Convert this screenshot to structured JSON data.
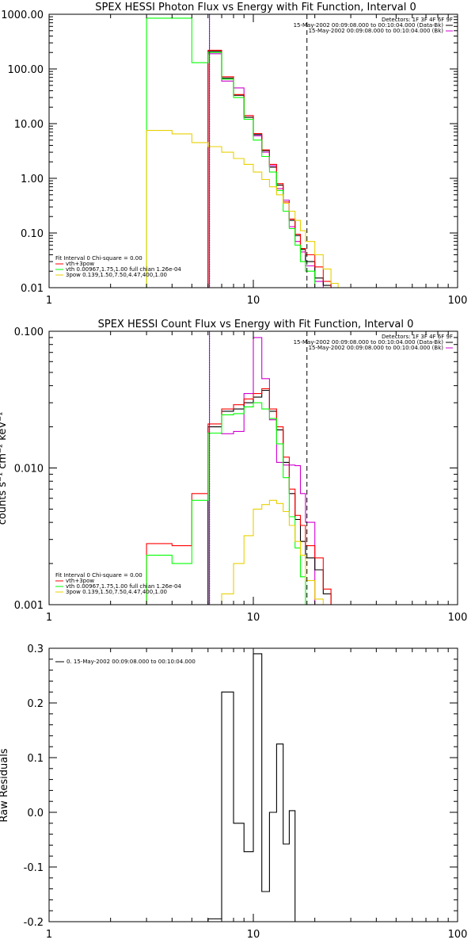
{
  "colors": {
    "background": "#ffffff",
    "axes": "#000000",
    "red": "#ff0000",
    "green": "#00ff00",
    "yellow": "#e8d000",
    "magenta": "#d000d0",
    "black": "#000000",
    "violet": "#8000ff"
  },
  "chart_data": [
    {
      "type": "line",
      "title": "SPEX HESSI Photon Flux vs Energy with Fit Function, Interval 0",
      "xscale": "log",
      "yscale": "log",
      "xlim": [
        1,
        100
      ],
      "ylim": [
        0.01,
        1000
      ],
      "xticks": [
        1,
        10,
        100
      ],
      "xtick_labels": [
        "1",
        "10",
        "100"
      ],
      "yticks": [
        0.01,
        0.1,
        1,
        10,
        100,
        1000
      ],
      "ytick_labels": [
        "0.01",
        "0.10",
        "1.00",
        "10.00",
        "100.00",
        "1000.00"
      ],
      "vlines": [
        {
          "x": 6.1,
          "style": "dotted",
          "color": "#000000"
        },
        {
          "x": 6.1,
          "style": "solid",
          "color": "#8000ff"
        },
        {
          "x": 18.3,
          "style": "dashed",
          "color": "#000000"
        }
      ],
      "legend_topright": [
        "Detectors: 1F 3F 4F 6F 9F",
        "15-May-2002 00:09:08.000 to 00:10:04.000 (Data-Bk)",
        "15-May-2002 00:09:08.000 to 00:10:04.000 (Bk)"
      ],
      "legend_topright_colors": [
        "",
        "#000000",
        "#d000d0"
      ],
      "legend_bottomleft_title": "Fit Interval 0   Chi-square = 0.00",
      "legend_bottomleft": [
        "vth+3pow",
        "vth 0.00967,1.75,1.00   full chian 1.26e-04",
        "3pow 0.139,1.50,7.50,4.47,400,1.00"
      ],
      "legend_bottomleft_colors": [
        "#ff0000",
        "#00ff00",
        "#e8d000"
      ],
      "edges": [
        3,
        4,
        5,
        6,
        7,
        8,
        9,
        10,
        11,
        12,
        13,
        14,
        15,
        16,
        17,
        18,
        20,
        22,
        24,
        26
      ],
      "series": [
        {
          "color": "#d000d0",
          "values": [
            null,
            null,
            null,
            190,
            60,
            45,
            14,
            6,
            3.0,
            1.7,
            0.65,
            0.4,
            0.13,
            0.07,
            0.045,
            0.025,
            0.013,
            null,
            null
          ]
        },
        {
          "color": "#000000",
          "values": [
            null,
            null,
            null,
            210,
            68,
            33,
            13,
            6.3,
            3.2,
            1.6,
            0.75,
            0.35,
            0.17,
            0.09,
            0.05,
            0.03,
            0.015,
            0.011,
            null
          ]
        },
        {
          "color": "#ff0000",
          "values": [
            null,
            null,
            null,
            220,
            72,
            34,
            14,
            6.6,
            3.3,
            1.8,
            0.8,
            0.37,
            0.18,
            0.095,
            0.052,
            0.04,
            0.024,
            0.013,
            null
          ]
        },
        {
          "color": "#00ff00",
          "values": [
            850,
            850,
            130,
            200,
            65,
            30,
            12,
            5,
            2.5,
            1.3,
            0.6,
            0.25,
            0.12,
            0.06,
            0.03,
            0.02,
            null,
            null,
            null
          ]
        },
        {
          "color": "#e8d000",
          "values": [
            7.5,
            6.5,
            4.5,
            3.8,
            3.0,
            2.3,
            1.8,
            1.3,
            0.95,
            0.7,
            0.5,
            0.35,
            0.25,
            0.17,
            0.11,
            0.07,
            0.04,
            0.022,
            0.012
          ]
        }
      ]
    },
    {
      "type": "line",
      "title": "SPEX HESSI Count Flux vs Energy with Fit Function, Interval 0",
      "ylabel": "counts s⁻¹ cm⁻² keV⁻¹",
      "xscale": "log",
      "yscale": "log",
      "xlim": [
        1,
        100
      ],
      "ylim": [
        0.001,
        0.1
      ],
      "xticks": [
        1,
        10,
        100
      ],
      "xtick_labels": [
        "1",
        "10",
        "100"
      ],
      "yticks": [
        0.001,
        0.01,
        0.1
      ],
      "ytick_labels": [
        "0.001",
        "0.010",
        "0.100"
      ],
      "vlines": [
        {
          "x": 6.1,
          "style": "dotted",
          "color": "#000000"
        },
        {
          "x": 6.1,
          "style": "solid",
          "color": "#8000ff"
        },
        {
          "x": 18.3,
          "style": "dashed",
          "color": "#000000"
        }
      ],
      "legend_topright": [
        "Detectors: 1F 3F 4F 6F 9F",
        "15-May-2002 00:09:08.000 to 00:10:04.000 (Data-Bk)",
        "15-May-2002 00:09:08.000 to 00:10:04.000 (Bk)"
      ],
      "legend_topright_colors": [
        "",
        "#000000",
        "#d000d0"
      ],
      "legend_bottomleft_title": "Fit Interval 0   Chi-square = 0.00",
      "legend_bottomleft": [
        "vth+3pow",
        "vth 0.00967,1.75,1.00   full chian 1.26e-04",
        "3pow 0.139,1.50,7.50,4.47,400,1.00"
      ],
      "legend_bottomleft_colors": [
        "#ff0000",
        "#00ff00",
        "#e8d000"
      ],
      "edges": [
        3,
        4,
        5,
        6,
        7,
        8,
        9,
        10,
        11,
        12,
        13,
        14,
        15,
        16,
        17,
        18,
        20,
        22,
        24,
        26
      ],
      "series": [
        {
          "color": "#d000d0",
          "values": [
            null,
            null,
            null,
            0.018,
            0.0178,
            0.0185,
            0.035,
            0.09,
            0.045,
            0.0225,
            0.011,
            0.0105,
            0.0105,
            0.0104,
            0.0065,
            0.004,
            null,
            null,
            null
          ]
        },
        {
          "color": "#000000",
          "values": [
            null,
            null,
            null,
            0.02,
            0.026,
            0.027,
            0.03,
            0.033,
            0.037,
            0.026,
            0.019,
            0.011,
            0.0065,
            0.0042,
            0.0029,
            0.0022,
            0.0018,
            0.0012,
            null
          ]
        },
        {
          "color": "#ff0000",
          "values": [
            0.0028,
            0.0027,
            0.0065,
            0.021,
            0.027,
            0.029,
            0.032,
            0.035,
            0.038,
            0.027,
            0.02,
            0.012,
            0.007,
            0.0045,
            0.0038,
            0.0027,
            0.0022,
            0.0013,
            null
          ]
        },
        {
          "color": "#00ff00",
          "values": [
            0.0023,
            0.002,
            0.0058,
            0.018,
            0.0245,
            0.025,
            0.028,
            0.03,
            0.027,
            0.023,
            0.015,
            0.0085,
            0.0044,
            0.0026,
            0.0016,
            null,
            null,
            null,
            null
          ]
        },
        {
          "color": "#e8d000",
          "values": [
            null,
            null,
            null,
            null,
            0.0012,
            0.002,
            0.0032,
            0.005,
            0.0054,
            0.0058,
            0.0055,
            0.0048,
            0.0038,
            0.0029,
            0.0023,
            0.0015,
            0.0011,
            null,
            null
          ]
        }
      ]
    },
    {
      "type": "line",
      "ylabel": "Raw Residuals",
      "xscale": "log",
      "yscale": "linear",
      "xlim": [
        1,
        100
      ],
      "ylim": [
        -0.2,
        0.3
      ],
      "xticks": [
        1,
        10,
        100
      ],
      "xtick_labels": [
        "1",
        "10",
        "100"
      ],
      "yticks": [
        -0.2,
        -0.1,
        0.0,
        0.1,
        0.2,
        0.3
      ],
      "ytick_labels": [
        "-0.2",
        "-0.1",
        "0.0",
        "0.1",
        "0.2",
        "0.3"
      ],
      "legend_topleft": [
        "0. 15-May-2002 00:09:08.000 to 00:10:04.000"
      ],
      "edges": [
        6,
        7,
        8,
        9,
        10,
        11,
        12,
        13,
        14,
        15,
        16,
        17,
        18
      ],
      "series": [
        {
          "color": "#000000",
          "values": [
            -0.195,
            0.22,
            -0.02,
            -0.072,
            0.29,
            -0.145,
            0.0,
            0.125,
            -0.058,
            0.003,
            -0.2,
            null
          ]
        }
      ]
    }
  ]
}
